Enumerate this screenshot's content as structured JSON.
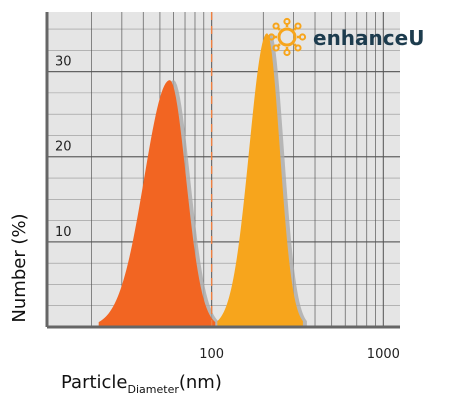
{
  "chart_data": {
    "type": "area",
    "xlabel_main": "Particle",
    "xlabel_sub": "Diameter",
    "xlabel_unit": "(nm)",
    "ylabel": "Number (%)",
    "x_scale": "log",
    "xlim": [
      11,
      1250
    ],
    "ylim": [
      0,
      37
    ],
    "x_ticks": [
      {
        "value": 100,
        "label": "100"
      },
      {
        "value": 1000,
        "label": "1000"
      }
    ],
    "y_ticks": [
      {
        "value": 10,
        "label": "10"
      },
      {
        "value": 20,
        "label": "20"
      },
      {
        "value": 30,
        "label": "30"
      }
    ],
    "minor_y_step": 2.5,
    "grid": true,
    "reference_line": {
      "x": 100,
      "style": "dashed",
      "color": "#f08040"
    },
    "series": [
      {
        "color": "#f26522",
        "peak_x": 57,
        "peak_y": 29,
        "x_range": [
          22,
          105
        ]
      },
      {
        "color": "#f7a51c",
        "peak_x": 210,
        "peak_y": 34.5,
        "x_range": [
          108,
          340
        ]
      }
    ],
    "colors": {
      "plot_background": "#e5e5e5",
      "grid": "#555555",
      "shadow": "#aaaaaa"
    }
  },
  "brand": {
    "name": "enhanceU",
    "text_color": "#1d3c4e",
    "icon_color": "#f7a51c",
    "icon": "sun-gear-icon"
  }
}
